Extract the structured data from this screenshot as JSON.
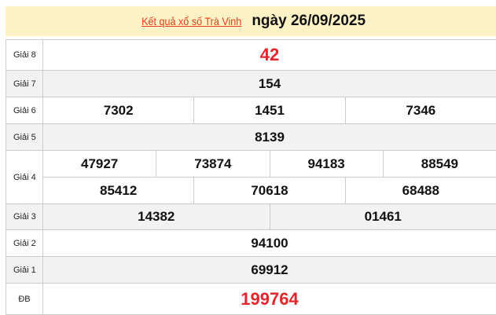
{
  "header": {
    "link": "Kết quả xổ số Trà Vinh",
    "date": "ngày 26/09/2025"
  },
  "colors": {
    "accent": "#e3262b",
    "header_bg": "#fdf2c6"
  },
  "prizes": [
    {
      "label": "Giải 8",
      "rows": [
        [
          "42"
        ]
      ]
    },
    {
      "label": "Giải 7",
      "rows": [
        [
          "154"
        ]
      ]
    },
    {
      "label": "Giải 6",
      "rows": [
        [
          "7302",
          "1451",
          "7346"
        ]
      ]
    },
    {
      "label": "Giải 5",
      "rows": [
        [
          "8139"
        ]
      ]
    },
    {
      "label": "Giải 4",
      "rows": [
        [
          "47927",
          "73874",
          "94183",
          "88549"
        ],
        [
          "85412",
          "70618",
          "68488"
        ]
      ]
    },
    {
      "label": "Giải 3",
      "rows": [
        [
          "14382",
          "01461"
        ]
      ]
    },
    {
      "label": "Giải 2",
      "rows": [
        [
          "94100"
        ]
      ]
    },
    {
      "label": "Giải 1",
      "rows": [
        [
          "69912"
        ]
      ]
    },
    {
      "label": "ĐB",
      "rows": [
        [
          "199764"
        ]
      ]
    }
  ]
}
